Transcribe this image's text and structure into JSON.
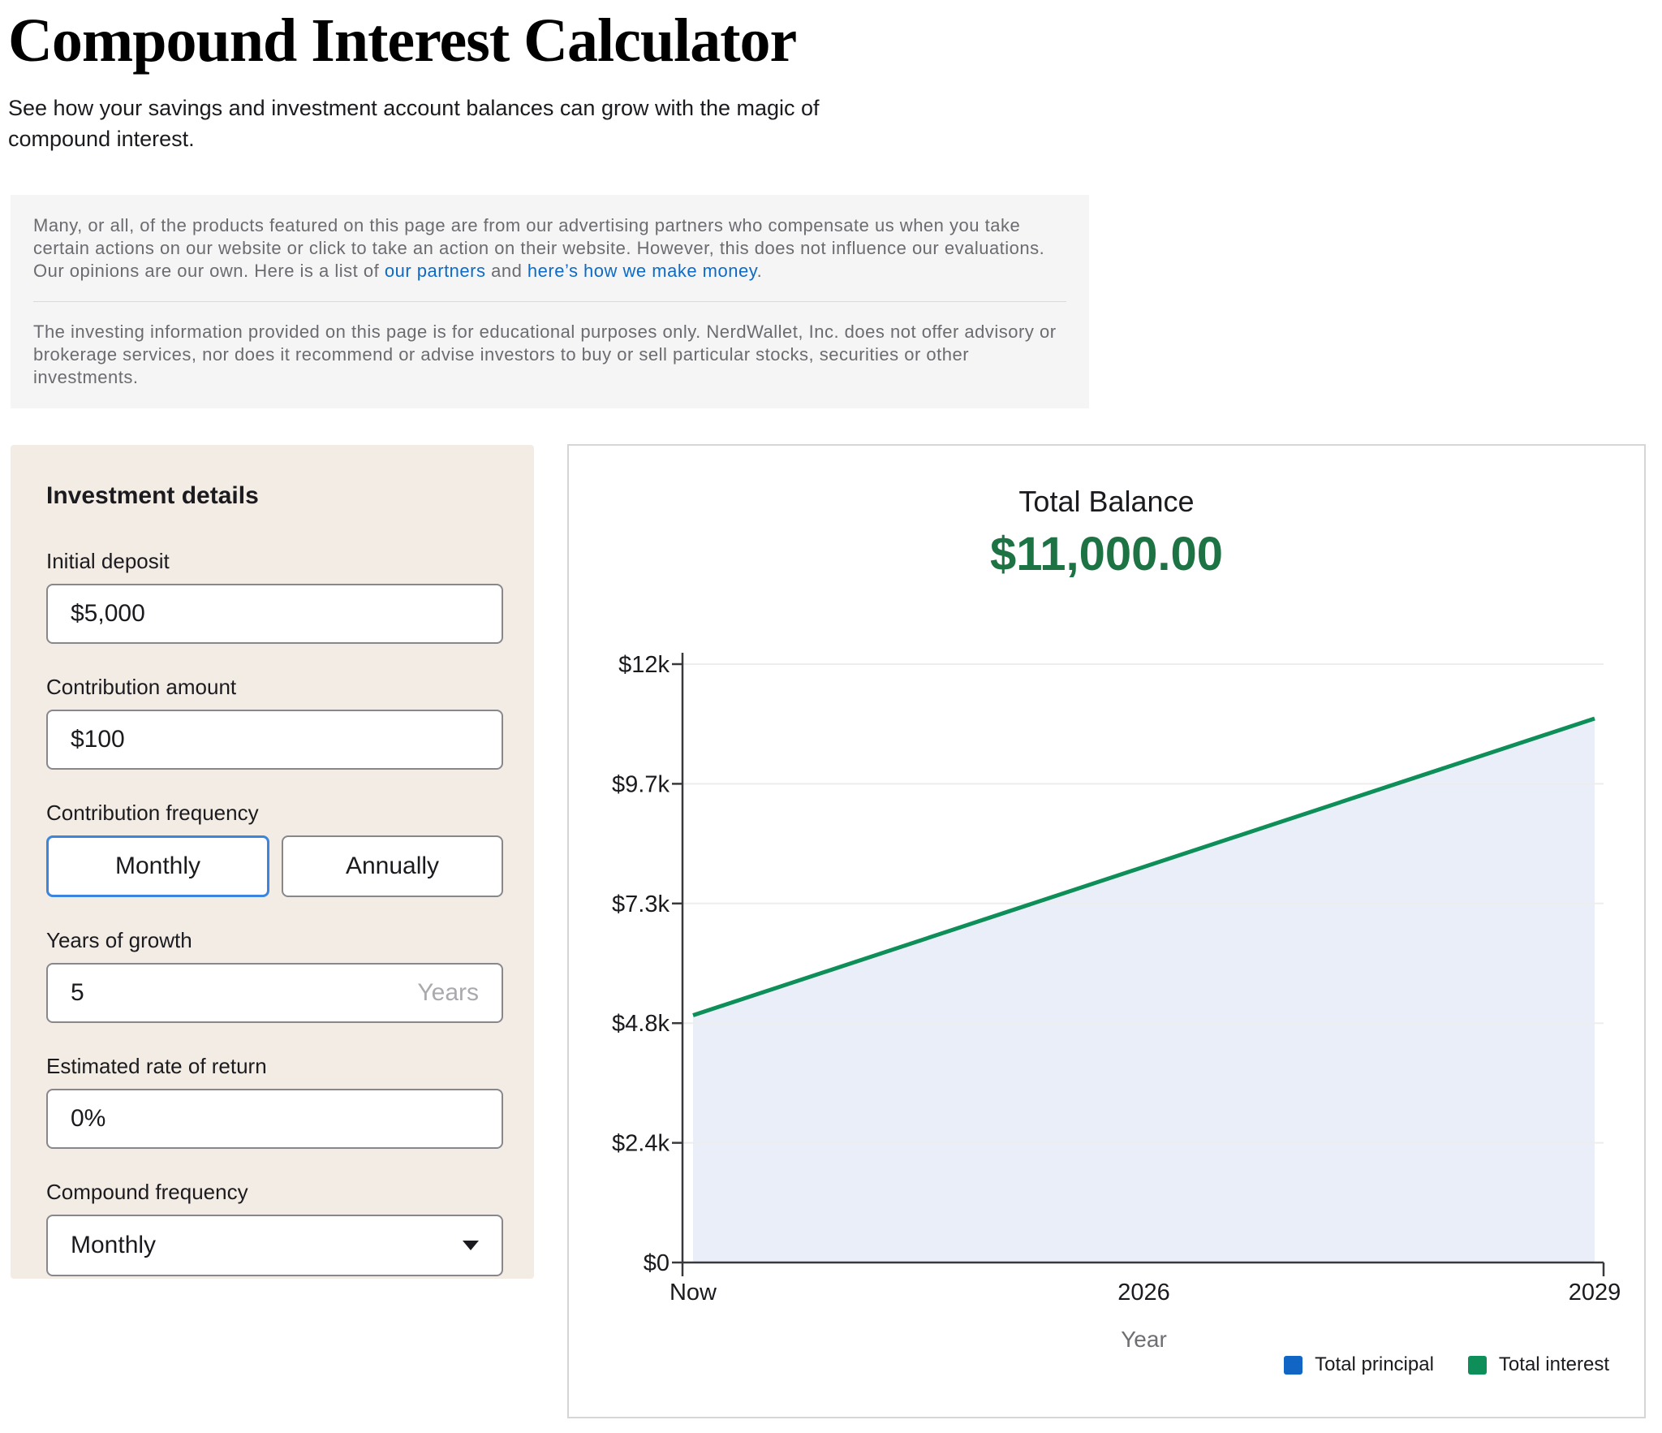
{
  "page": {
    "title": "Compound Interest Calculator",
    "subtitle": "See how your savings and investment account balances can grow with the magic of compound interest."
  },
  "disclaimer": {
    "p1_start": "Many, or all, of the products featured on this page are from our advertising partners who compensate us when you take certain actions on our website or click to take an action on their website. However, this does not influence our evaluations. Our opinions are our own. Here is a list of ",
    "link_partners": "our partners",
    "p1_and": " and ",
    "link_money": "here’s how we make money",
    "p1_end": ".",
    "p2": "The investing information provided on this page is for educational purposes only. NerdWallet, Inc. does not offer advisory or brokerage services, nor does it recommend or advise investors to buy or sell particular stocks, securities or other investments."
  },
  "form": {
    "heading": "Investment details",
    "initial_deposit": {
      "label": "Initial deposit",
      "value": "$5,000"
    },
    "contribution_amount": {
      "label": "Contribution amount",
      "value": "$100"
    },
    "contribution_frequency": {
      "label": "Contribution frequency",
      "monthly": "Monthly",
      "annually": "Annually",
      "selected": "Monthly"
    },
    "years_of_growth": {
      "label": "Years of growth",
      "value": "5",
      "unit": "Years"
    },
    "rate_of_return": {
      "label": "Estimated rate of return",
      "value": "0%"
    },
    "compound_frequency": {
      "label": "Compound frequency",
      "value": "Monthly"
    }
  },
  "chart": {
    "title": "Total Balance",
    "total": "$11,000.00"
  },
  "chart_data": {
    "type": "area",
    "title": "Total Balance",
    "total_balance": 11000,
    "xlabel": "Year",
    "xlim": [
      0,
      5
    ],
    "ylim": [
      0,
      12100
    ],
    "grid": true,
    "legend_position": "bottom-right",
    "x_ticks": [
      {
        "t": 0,
        "label": "Now"
      },
      {
        "t": 2.5,
        "label": "2026"
      },
      {
        "t": 5,
        "label": "2029"
      }
    ],
    "y_ticks": [
      {
        "v": 0,
        "label": "$0"
      },
      {
        "v": 2420,
        "label": "$2.4k"
      },
      {
        "v": 4840,
        "label": "$4.8k"
      },
      {
        "v": 7260,
        "label": "$7.3k"
      },
      {
        "v": 9680,
        "label": "$9.7k"
      },
      {
        "v": 12100,
        "label": "$12k"
      }
    ],
    "series": [
      {
        "name": "Total principal",
        "color": "#1166c5",
        "render": "area",
        "points": [
          {
            "t": 0,
            "value": 5000
          },
          {
            "t": 5,
            "value": 11000
          }
        ]
      },
      {
        "name": "Total interest",
        "color": "#0e8e59",
        "render": "top-line",
        "points": [
          {
            "t": 0,
            "value": 0
          },
          {
            "t": 5,
            "value": 0
          }
        ]
      }
    ],
    "legend": [
      {
        "label": "Total principal",
        "color": "#1166c5"
      },
      {
        "label": "Total interest",
        "color": "#0e8e59"
      }
    ]
  },
  "colors": {
    "balance_green": "#1d7344",
    "line_green": "#0e8e59",
    "principal_blue": "#1166c5",
    "area_fill": "#e9eef8",
    "selected_border_blue": "#3c85de",
    "panel_beige": "#f3ece4",
    "link_blue": "#0d6bc7"
  }
}
